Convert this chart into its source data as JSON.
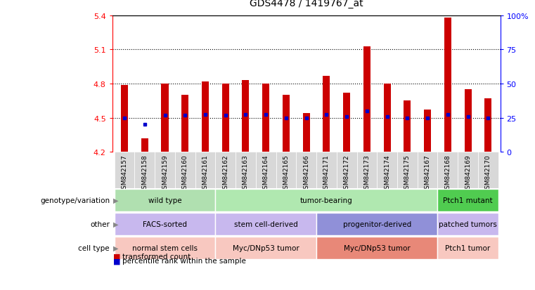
{
  "title": "GDS4478 / 1419767_at",
  "samples": [
    "GSM842157",
    "GSM842158",
    "GSM842159",
    "GSM842160",
    "GSM842161",
    "GSM842162",
    "GSM842163",
    "GSM842164",
    "GSM842165",
    "GSM842166",
    "GSM842171",
    "GSM842172",
    "GSM842173",
    "GSM842174",
    "GSM842175",
    "GSM842167",
    "GSM842168",
    "GSM842169",
    "GSM842170"
  ],
  "red_values": [
    4.79,
    4.32,
    4.8,
    4.7,
    4.82,
    4.8,
    4.83,
    4.8,
    4.7,
    4.54,
    4.87,
    4.72,
    5.13,
    4.8,
    4.65,
    4.57,
    5.38,
    4.75,
    4.67
  ],
  "blue_values": [
    4.5,
    4.44,
    4.52,
    4.52,
    4.53,
    4.52,
    4.53,
    4.53,
    4.5,
    4.5,
    4.53,
    4.51,
    4.56,
    4.51,
    4.5,
    4.5,
    4.53,
    4.51,
    4.5
  ],
  "ylim": [
    4.2,
    5.4
  ],
  "yticks_left": [
    4.2,
    4.5,
    4.8,
    5.1,
    5.4
  ],
  "yticks_right_labels": [
    "0",
    "25",
    "50",
    "75",
    "100%"
  ],
  "hlines": [
    4.5,
    4.8,
    5.1
  ],
  "bar_bottom": 4.2,
  "bar_color": "#cc0000",
  "blue_color": "#0000cc",
  "annotation_rows": [
    {
      "label": "genotype/variation",
      "groups": [
        {
          "text": "wild type",
          "start": 0,
          "end": 4,
          "color": "#b0e0b0"
        },
        {
          "text": "tumor-bearing",
          "start": 5,
          "end": 15,
          "color": "#b0e8b0"
        },
        {
          "text": "Ptch1 mutant",
          "start": 16,
          "end": 18,
          "color": "#50cc50"
        }
      ]
    },
    {
      "label": "other",
      "groups": [
        {
          "text": "FACS-sorted",
          "start": 0,
          "end": 4,
          "color": "#c8b8ee"
        },
        {
          "text": "stem cell-derived",
          "start": 5,
          "end": 9,
          "color": "#c8b8ee"
        },
        {
          "text": "progenitor-derived",
          "start": 10,
          "end": 15,
          "color": "#9090d8"
        },
        {
          "text": "patched tumors",
          "start": 16,
          "end": 18,
          "color": "#c8b8ee"
        }
      ]
    },
    {
      "label": "cell type",
      "groups": [
        {
          "text": "normal stem cells",
          "start": 0,
          "end": 4,
          "color": "#f8c8c0"
        },
        {
          "text": "Myc/DNp53 tumor",
          "start": 5,
          "end": 9,
          "color": "#f8c8c0"
        },
        {
          "text": "Myc/DNp53 tumor",
          "start": 10,
          "end": 15,
          "color": "#e88878"
        },
        {
          "text": "Ptch1 tumor",
          "start": 16,
          "end": 18,
          "color": "#f8c8c0"
        }
      ]
    }
  ],
  "legend_items": [
    {
      "label": "transformed count",
      "color": "#cc0000"
    },
    {
      "label": "percentile rank within the sample",
      "color": "#0000cc"
    }
  ]
}
